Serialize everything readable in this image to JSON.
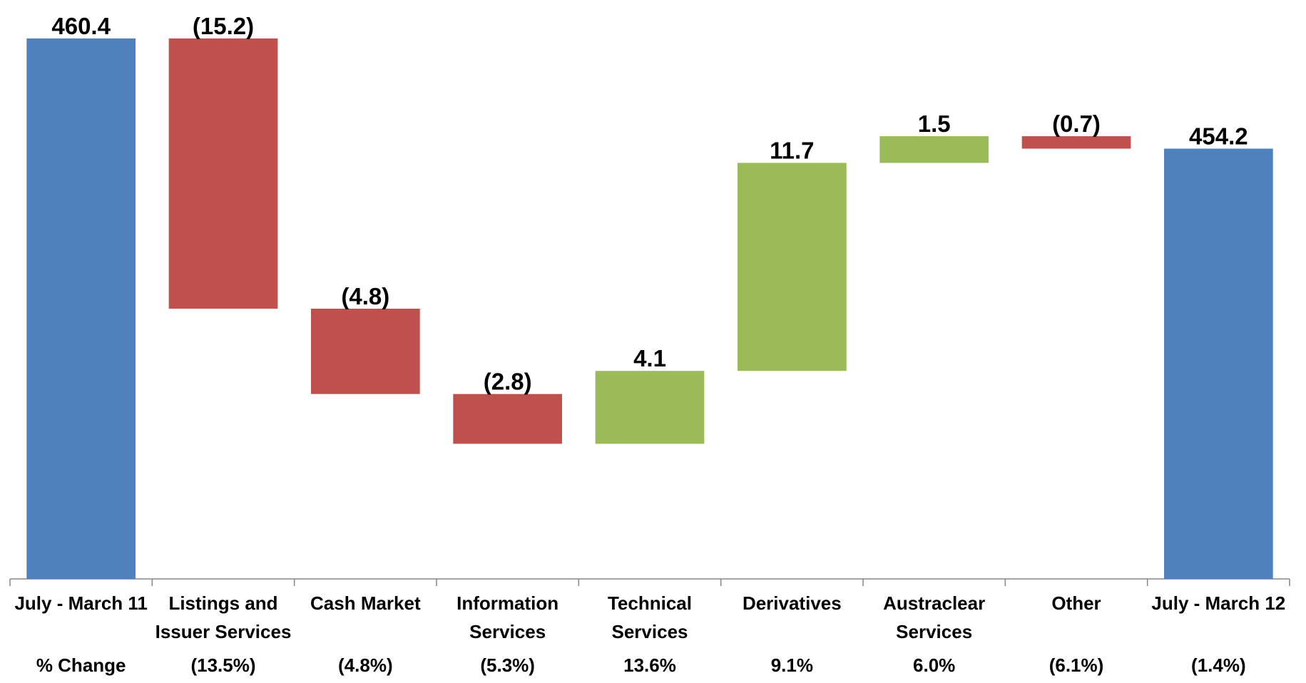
{
  "chart_data": {
    "type": "waterfall",
    "categories": [
      "July - March 11",
      "Listings and Issuer Services",
      "Cash Market",
      "Information Services",
      "Technical Services",
      "Derivatives",
      "Austraclear Services",
      "Other",
      "July - March 12"
    ],
    "values": [
      460.4,
      -15.2,
      -4.8,
      -2.8,
      4.1,
      11.7,
      1.5,
      -0.7,
      454.2
    ],
    "value_labels": [
      "460.4",
      "(15.2)",
      "(4.8)",
      "(2.8)",
      "4.1",
      "11.7",
      "1.5",
      "(0.7)",
      "454.2"
    ],
    "is_total": [
      true,
      false,
      false,
      false,
      false,
      false,
      false,
      false,
      true
    ],
    "total_color": "#4f81bd",
    "increase_color": "#9bbb59",
    "decrease_color": "#c0504d",
    "ylim": [
      430,
      462
    ],
    "pct_change_label": "% Change",
    "pct_change": [
      "(13.5%)",
      "(4.8%)",
      "(5.3%)",
      "13.6%",
      "9.1%",
      "6.0%",
      "(6.1%)",
      "(1.4%)"
    ]
  }
}
